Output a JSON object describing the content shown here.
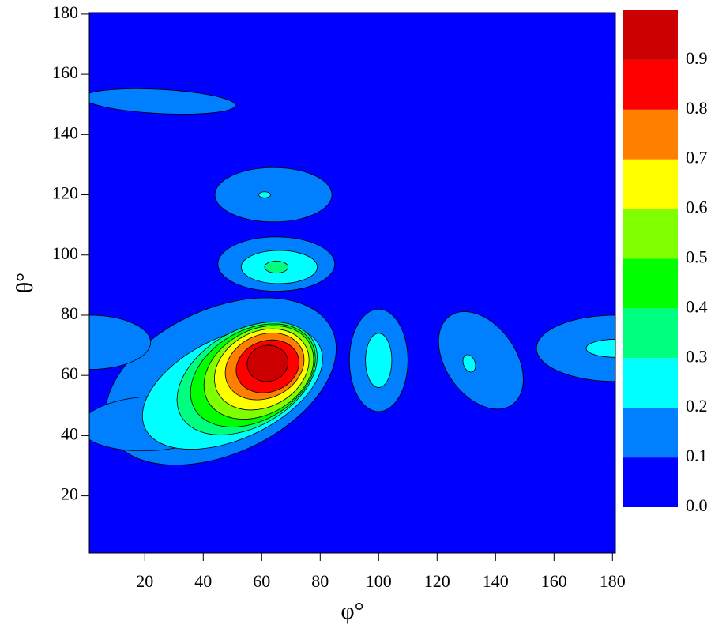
{
  "chart_data": {
    "type": "contour",
    "x_label": "φ°",
    "y_label": "θ°",
    "xlim": [
      1,
      181
    ],
    "ylim": [
      1,
      180.5
    ],
    "xticks": [
      20,
      40,
      60,
      80,
      100,
      120,
      140,
      160,
      180
    ],
    "yticks": [
      20,
      40,
      60,
      80,
      100,
      120,
      140,
      160,
      180
    ],
    "zlim": [
      0,
      1
    ],
    "levels": [
      {
        "value": 0,
        "label": "0.0"
      },
      {
        "value": 0.1,
        "label": "0.1"
      },
      {
        "value": 0.2,
        "label": "0.2"
      },
      {
        "value": 0.3,
        "label": "0.3"
      },
      {
        "value": 0.4,
        "label": "0.4"
      },
      {
        "value": 0.5,
        "label": "0.5"
      },
      {
        "value": 0.6,
        "label": "0.6"
      },
      {
        "value": 0.7,
        "label": "0.7"
      },
      {
        "value": 0.8,
        "label": "0.8"
      },
      {
        "value": 0.9,
        "label": "0.9"
      }
    ],
    "colors": [
      "#0000ff",
      "#0080ff",
      "#00ffff",
      "#00ff80",
      "#00ff00",
      "#80ff00",
      "#ffff00",
      "#ff8000",
      "#ff0000",
      "#cc0000"
    ],
    "regions": [
      {
        "level": 1,
        "x": 46,
        "y": 58,
        "rx": 42,
        "ry": 24,
        "angle": 25
      },
      {
        "level": 1,
        "x": 22,
        "y": 44,
        "rx": 24,
        "ry": 9,
        "angle": 3
      },
      {
        "level": 1,
        "x": 25,
        "y": 151,
        "rx": 26,
        "ry": 4,
        "angle": -3
      },
      {
        "level": 1,
        "x": 64,
        "y": 120,
        "rx": 20,
        "ry": 9,
        "angle": 0
      },
      {
        "level": 1,
        "x": 65,
        "y": 97,
        "rx": 20,
        "ry": 9,
        "angle": 0
      },
      {
        "level": 1,
        "x": 1,
        "y": 71,
        "rx": 21,
        "ry": 9,
        "angle": 0
      },
      {
        "level": 1,
        "x": 100,
        "y": 65,
        "rx": 10,
        "ry": 17,
        "angle": 0
      },
      {
        "level": 1,
        "x": 135,
        "y": 65,
        "rx": 12,
        "ry": 18,
        "angle": 35
      },
      {
        "level": 1,
        "x": 181,
        "y": 69,
        "rx": 27,
        "ry": 11,
        "angle": 0
      },
      {
        "level": 2,
        "x": 50,
        "y": 56,
        "rx": 33,
        "ry": 17,
        "angle": 25
      },
      {
        "level": 2,
        "x": 61,
        "y": 120,
        "rx": 2,
        "ry": 1,
        "angle": 0
      },
      {
        "level": 2,
        "x": 66,
        "y": 96,
        "rx": 13,
        "ry": 5.5,
        "angle": 0
      },
      {
        "level": 2,
        "x": 100,
        "y": 65,
        "rx": 4.5,
        "ry": 9,
        "angle": 0
      },
      {
        "level": 2,
        "x": 131,
        "y": 64,
        "rx": 2,
        "ry": 3,
        "angle": 20
      },
      {
        "level": 2,
        "x": 181,
        "y": 69,
        "rx": 10,
        "ry": 3,
        "angle": 0
      },
      {
        "level": 3,
        "x": 55,
        "y": 59,
        "rx": 26,
        "ry": 16,
        "angle": 30
      },
      {
        "level": 3,
        "x": 65,
        "y": 96,
        "rx": 4,
        "ry": 2,
        "angle": 0
      },
      {
        "level": 4,
        "x": 57,
        "y": 60,
        "rx": 23,
        "ry": 15,
        "angle": 30
      },
      {
        "level": 5,
        "x": 59,
        "y": 61,
        "rx": 20,
        "ry": 14,
        "angle": 30
      },
      {
        "level": 6,
        "x": 60,
        "y": 62,
        "rx": 17,
        "ry": 12.5,
        "angle": 28
      },
      {
        "level": 7,
        "x": 61,
        "y": 63,
        "rx": 14,
        "ry": 10.5,
        "angle": 25
      },
      {
        "level": 8,
        "x": 62,
        "y": 63,
        "rx": 11,
        "ry": 8.5,
        "angle": 20
      },
      {
        "level": 9,
        "x": 62,
        "y": 64,
        "rx": 7,
        "ry": 6,
        "angle": 10
      }
    ]
  }
}
